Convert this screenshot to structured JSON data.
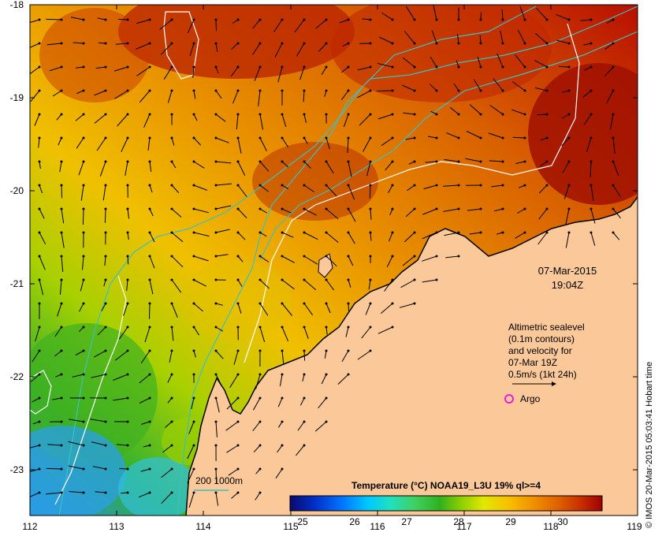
{
  "map": {
    "lon_ticks": [
      "112",
      "113",
      "114",
      "115",
      "116",
      "117",
      "118",
      "119"
    ],
    "lat_ticks": [
      "-18",
      "-19",
      "-20",
      "-21",
      "-22",
      "-23"
    ],
    "date": "07-Mar-2015",
    "time": "19:04Z"
  },
  "legend": {
    "altimetry_lines": [
      "Altimetric sealevel",
      "(0.1m contours)",
      "and velocity for",
      "07-Mar 19Z",
      "0.5m/s (1kt 24h)"
    ],
    "argo_label": "Argo",
    "isobath_label": "200  1000m"
  },
  "colorbar": {
    "title": "Temperature (°C) NOAA19_L3U 19% ql>=4",
    "ticks": [
      "25",
      "26",
      "27",
      "28",
      "29",
      "30"
    ],
    "colors": [
      "#0a0a6e",
      "#0030c8",
      "#0078ff",
      "#00c8ff",
      "#20e0c0",
      "#40d060",
      "#30b020",
      "#90d000",
      "#e0e800",
      "#f8c000",
      "#f09000",
      "#e06000",
      "#c83000",
      "#a00000"
    ]
  },
  "credit": "© IMOS 20-Mar-2015 05:03:41 Hobart time",
  "colors": {
    "land": "#fbc89a",
    "isobath": "#3cc0c0",
    "contour": "#ffffff"
  }
}
